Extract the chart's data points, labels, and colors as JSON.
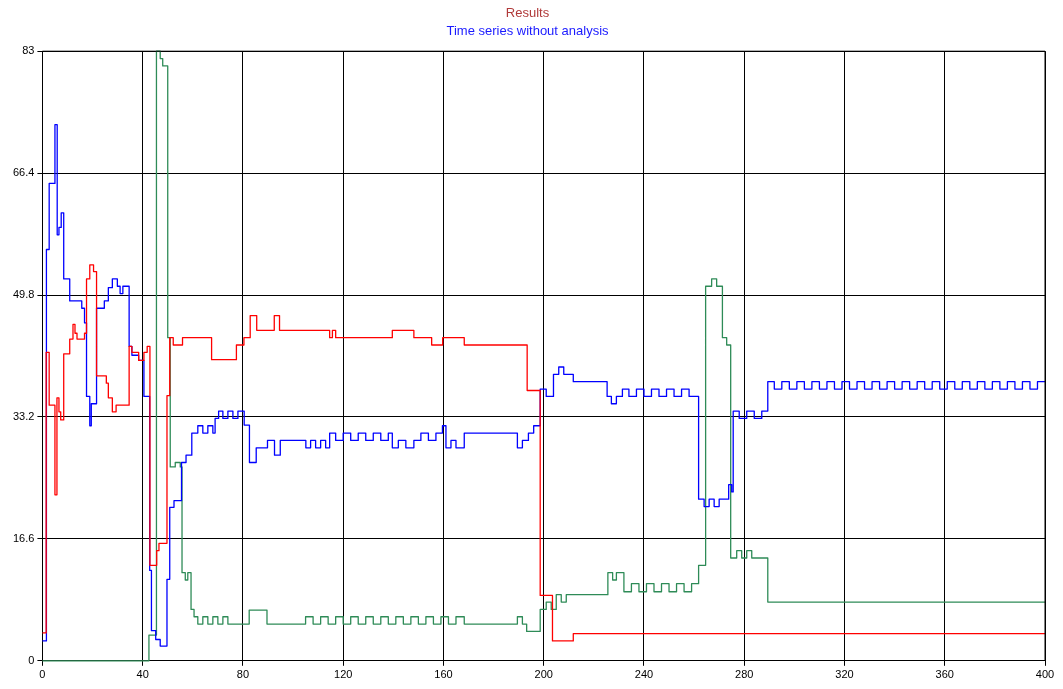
{
  "chart_data": {
    "type": "step",
    "title": "Results",
    "subtitle": "Time series without analysis",
    "xlim": [
      0,
      400
    ],
    "xticks": [
      0,
      40,
      80,
      120,
      160,
      200,
      240,
      280,
      320,
      360,
      400
    ],
    "ylim": [
      0,
      83
    ],
    "yticks": [
      0,
      16.6,
      33.2,
      49.8,
      66.4,
      83
    ],
    "grid": true,
    "legend": false,
    "marker": "none",
    "line_style": "solid",
    "series": [
      {
        "color": "#ff0000",
        "x": [
          0,
          1.5,
          2.7,
          5,
          5.8,
          6.6,
          7.3,
          8.5,
          10.9,
          12.2,
          13,
          13.8,
          16.8,
          17.6,
          18.9,
          20.4,
          21.6,
          25.5,
          26.3,
          27.9,
          29.4,
          34.6,
          35.7,
          38.4,
          40.5,
          41.8,
          42.9,
          45.6,
          46.5,
          49.7,
          50.8,
          52.2,
          55.9,
          67.5,
          77.4,
          80.4,
          82.9,
          85.5,
          92.5,
          94.6,
          114.6,
          115.7,
          117,
          139.6,
          148.2,
          155.3,
          159.7,
          168.3,
          193.4,
          198.6,
          203.5,
          211.8,
          400
        ],
        "values": [
          3.8,
          42,
          34.8,
          22.6,
          35.8,
          33.9,
          32.8,
          41.8,
          43.8,
          45.8,
          44.6,
          43.8,
          44.6,
          52,
          53.9,
          53,
          38.8,
          37.8,
          35.8,
          33.9,
          34.8,
          42.8,
          42,
          40.9,
          42,
          42.8,
          13,
          15,
          16,
          36.1,
          44,
          43,
          44,
          41,
          43,
          44,
          47,
          45,
          47,
          45,
          44,
          45,
          44,
          45,
          44,
          43,
          44,
          43,
          36.8,
          8.9,
          2.7,
          3.7,
          3.7
        ]
      },
      {
        "color": "#0000ff",
        "x": [
          0,
          1.6,
          2.7,
          5,
          5.9,
          6.6,
          7.5,
          8.5,
          10.9,
          15.7,
          16.8,
          17.6,
          18.9,
          19.5,
          21.6,
          24.7,
          26.3,
          27.9,
          29.9,
          31,
          32.1,
          34.6,
          35.7,
          38.4,
          40.5,
          42.8,
          43.5,
          45.2,
          47,
          49.7,
          50.8,
          52.5,
          55.5,
          57.3,
          59.6,
          62,
          64,
          66,
          68,
          68.9,
          70.3,
          72,
          74,
          76,
          78,
          80.5,
          82.6,
          85.3,
          89.8,
          92.6,
          94.9,
          105.1,
          107,
          109,
          111,
          113,
          114.6,
          117,
          120,
          123,
          126,
          129,
          132,
          135,
          138,
          139.6,
          142,
          145,
          148.2,
          151,
          154,
          157,
          159.6,
          161,
          163,
          165,
          168.3,
          189.5,
          191.5,
          193.9,
          196,
          198.6,
          201,
          203.9,
          206,
          208,
          211.8,
          225.3,
          227,
          229,
          231.4,
          234,
          237,
          240,
          243,
          246,
          249,
          252,
          255,
          258,
          261.8,
          264,
          266,
          268,
          270,
          273.8,
          275,
          275.6,
          278,
          281,
          284,
          287,
          289.4,
          292,
          295,
          298,
          301,
          304,
          307,
          310,
          313,
          316,
          319,
          322,
          325,
          328,
          331,
          334,
          337,
          340,
          343,
          346,
          349,
          352,
          355,
          358,
          361,
          364,
          367,
          370,
          373,
          376,
          379,
          382,
          385,
          388,
          391,
          394,
          397,
          400
        ],
        "values": [
          2.7,
          56,
          65,
          73,
          58,
          59,
          61,
          52,
          49,
          48,
          46,
          36,
          32,
          35,
          48,
          49,
          50.8,
          52,
          51,
          50,
          51,
          42.8,
          41.6,
          40.9,
          36,
          12.3,
          4.1,
          2.9,
          2,
          11.1,
          20.9,
          21.8,
          27,
          28,
          31,
          32,
          31,
          32,
          31,
          33,
          34,
          33,
          34,
          33,
          34,
          32.1,
          27,
          29,
          30,
          28,
          30,
          29,
          30,
          29,
          30,
          29,
          31,
          30,
          31,
          30,
          31,
          30,
          31,
          30,
          31,
          29,
          30,
          29,
          30,
          31,
          30,
          31,
          32,
          29,
          30,
          29,
          31,
          29,
          30,
          31,
          32,
          37,
          36,
          39,
          40,
          39,
          38,
          36,
          35,
          36,
          37,
          36,
          37,
          36,
          37,
          36,
          37,
          36,
          37,
          36,
          22,
          21,
          22,
          21,
          22,
          24,
          23,
          34,
          33,
          34,
          33,
          34,
          38,
          37,
          38,
          37,
          38,
          37,
          38,
          37,
          38,
          37,
          38,
          37,
          38,
          37,
          38,
          37,
          38,
          37,
          38,
          37,
          38,
          37,
          38,
          37,
          38,
          37,
          38,
          37,
          38,
          37,
          38,
          37,
          38,
          37,
          38,
          37,
          38,
          38
        ]
      },
      {
        "color": "#2e8b57",
        "x": [
          0,
          42.5,
          45.5,
          47,
          48,
          50,
          51,
          53,
          55,
          55.7,
          57,
          58,
          59.3,
          60.5,
          62,
          64,
          66,
          68,
          70,
          72,
          74,
          82.5,
          89.6,
          105,
          108,
          111,
          114,
          117,
          120,
          123,
          126,
          129,
          132,
          135,
          138,
          141,
          144,
          147,
          150,
          153,
          156,
          159,
          162,
          165,
          168.3,
          189.5,
          191.5,
          193.2,
          198.6,
          201,
          203,
          205,
          207,
          209,
          225.6,
          227.5,
          229,
          232,
          235,
          238,
          241,
          244,
          247,
          250,
          253,
          256,
          259,
          261.8,
          264.6,
          267,
          269,
          271.3,
          273,
          274.6,
          277,
          279,
          281,
          283,
          289.4,
          400
        ],
        "values": [
          0,
          3.5,
          83,
          82,
          81,
          44,
          26.4,
          27,
          26.4,
          12,
          11,
          12,
          7,
          6,
          5,
          6,
          5,
          6,
          5,
          6,
          5,
          6.9,
          5,
          6,
          5,
          6,
          5,
          6,
          5,
          6,
          5,
          6,
          5,
          6,
          5,
          6,
          5,
          6,
          5,
          6,
          5,
          6,
          5,
          6,
          5,
          6,
          5,
          4,
          7,
          8,
          7,
          9,
          8,
          9,
          12,
          11,
          12,
          9.4,
          10.5,
          9.4,
          10.5,
          9.4,
          10.5,
          9.4,
          10.5,
          9.4,
          10.5,
          13,
          51,
          52,
          51,
          44,
          43,
          14,
          15,
          14,
          15,
          14,
          8,
          8
        ]
      }
    ]
  }
}
